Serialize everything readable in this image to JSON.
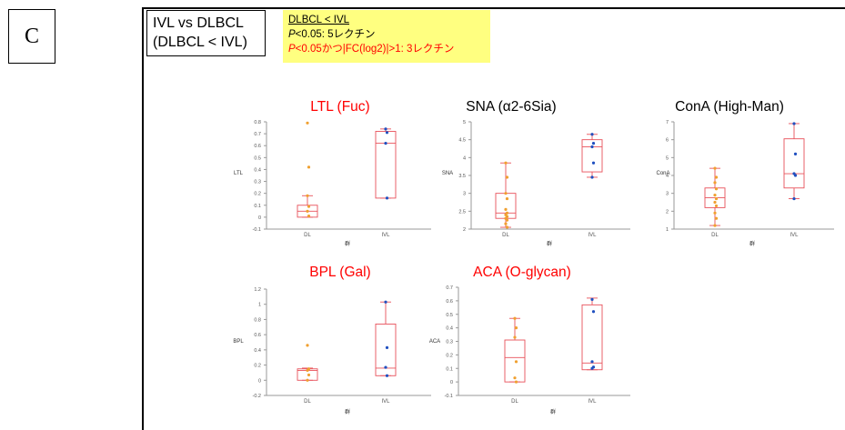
{
  "panel_label": "C",
  "comparison": {
    "line1": "IVL vs DLBCL",
    "line2": "(DLBCL < IVL)"
  },
  "note": {
    "line1": "DLBCL < IVL",
    "line2_p": "P",
    "line2_rest": "<0.05: 5レクチン",
    "line3_p": "P",
    "line3_rest": "<0.05かつ|FC(log2)|>1: 3レクチン"
  },
  "colors": {
    "box": "#e8505a",
    "dl_points": "#f0a030",
    "ivl_points": "#2050c0",
    "title_red": "#ff0000",
    "title_black": "#000000"
  },
  "chart_data": [
    {
      "type": "box",
      "title": "LTL (Fuc)",
      "title_color": "#ff0000",
      "ylabel": "LTL",
      "xlabel": "群",
      "categories": [
        "DL",
        "IVL"
      ],
      "ylim": [
        -0.1,
        0.8
      ],
      "yticks": [
        "-0.1",
        "0",
        "0.1",
        "0.2",
        "0.3",
        "0.4",
        "0.5",
        "0.6",
        "0.7",
        "0.8"
      ],
      "boxes": [
        {
          "min": 0.0,
          "q1": 0.0,
          "median": 0.05,
          "q3": 0.1,
          "max": 0.18
        },
        {
          "min": 0.16,
          "q1": 0.16,
          "median": 0.62,
          "q3": 0.72,
          "max": 0.74
        }
      ],
      "points": [
        [
          0.79,
          0.42,
          0.18,
          0.09,
          0.05,
          0.01
        ],
        [
          0.74,
          0.71,
          0.62,
          0.16
        ]
      ]
    },
    {
      "type": "box",
      "title": "SNA (α2-6Sia)",
      "title_color": "#000000",
      "ylabel": "SNA",
      "xlabel": "群",
      "categories": [
        "DL",
        "IVL"
      ],
      "ylim": [
        2,
        5
      ],
      "yticks": [
        "2",
        "2.5",
        "3",
        "3.5",
        "4",
        "4.5",
        "5"
      ],
      "boxes": [
        {
          "min": 2.05,
          "q1": 2.3,
          "median": 2.45,
          "q3": 3.0,
          "max": 3.85
        },
        {
          "min": 3.45,
          "q1": 3.6,
          "median": 4.3,
          "q3": 4.5,
          "max": 4.65
        }
      ],
      "points": [
        [
          3.85,
          3.45,
          3.0,
          2.85,
          2.55,
          2.45,
          2.4,
          2.35,
          2.3,
          2.25,
          2.15,
          2.05
        ],
        [
          4.65,
          4.4,
          4.3,
          3.85,
          3.45
        ]
      ]
    },
    {
      "type": "box",
      "title": "ConA (High-Man)",
      "title_color": "#000000",
      "ylabel": "ConA",
      "xlabel": "群",
      "categories": [
        "DL",
        "IVL"
      ],
      "ylim": [
        1,
        7
      ],
      "yticks": [
        "1",
        "2",
        "3",
        "4",
        "5",
        "6",
        "7"
      ],
      "boxes": [
        {
          "min": 1.2,
          "q1": 2.2,
          "median": 2.75,
          "q3": 3.3,
          "max": 4.4
        },
        {
          "min": 2.7,
          "q1": 3.3,
          "median": 4.1,
          "q3": 6.05,
          "max": 6.9
        }
      ],
      "points": [
        [
          4.4,
          3.9,
          3.6,
          3.25,
          2.9,
          2.7,
          2.5,
          2.3,
          1.9,
          1.6,
          1.2
        ],
        [
          6.9,
          5.2,
          4.1,
          4.0,
          2.7
        ]
      ]
    },
    {
      "type": "box",
      "title": "BPL (Gal)",
      "title_color": "#ff0000",
      "ylabel": "BPL",
      "xlabel": "群",
      "categories": [
        "DL",
        "IVL"
      ],
      "ylim": [
        -0.2,
        1.2
      ],
      "yticks": [
        "-0.2",
        "0",
        "0.2",
        "0.4",
        "0.6",
        "0.8",
        "1",
        "1.2"
      ],
      "boxes": [
        {
          "min": 0.0,
          "q1": 0.0,
          "median": 0.13,
          "q3": 0.15,
          "max": 0.16
        },
        {
          "min": 0.06,
          "q1": 0.06,
          "median": 0.16,
          "q3": 0.74,
          "max": 1.03
        }
      ],
      "points": [
        [
          0.46,
          0.15,
          0.13,
          0.07,
          0.0
        ],
        [
          1.03,
          0.43,
          0.17,
          0.06
        ]
      ]
    },
    {
      "type": "box",
      "title": "ACA (O-glycan)",
      "title_color": "#ff0000",
      "ylabel": "ACA",
      "xlabel": "群",
      "categories": [
        "DL",
        "IVL"
      ],
      "ylim": [
        -0.1,
        0.7
      ],
      "yticks": [
        "-0.1",
        "0",
        "0.1",
        "0.2",
        "0.3",
        "0.4",
        "0.5",
        "0.6",
        "0.7"
      ],
      "boxes": [
        {
          "min": 0.0,
          "q1": 0.0,
          "median": 0.18,
          "q3": 0.31,
          "max": 0.47
        },
        {
          "min": 0.09,
          "q1": 0.09,
          "median": 0.14,
          "q3": 0.57,
          "max": 0.62
        }
      ],
      "points": [
        [
          0.47,
          0.4,
          0.33,
          0.15,
          0.03,
          0.0
        ],
        [
          0.61,
          0.52,
          0.15,
          0.11,
          0.1
        ]
      ]
    }
  ]
}
